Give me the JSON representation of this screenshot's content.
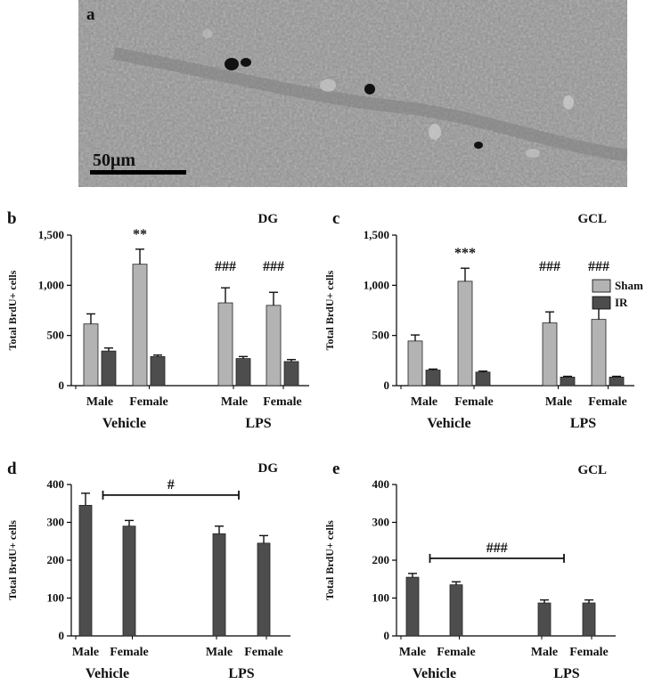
{
  "micrograph": {
    "panel": "a",
    "scale_bar_label": "50μm",
    "icon": "brain-tissue-micrograph"
  },
  "legend": {
    "entries": [
      {
        "label": "Sham",
        "color": "#b3b3b3"
      },
      {
        "label": "IR",
        "color": "#4d4d4d"
      }
    ]
  },
  "colors": {
    "sham": "#b3b3b3",
    "ir": "#4d4d4d",
    "axis": "#000000"
  },
  "chart_data": [
    {
      "panel": "b",
      "type": "bar",
      "title": "DG",
      "ylabel": "Total BrdU+ cells",
      "ylim": [
        0,
        1500
      ],
      "yticks": [
        "0",
        "500",
        "1,000",
        "1,500"
      ],
      "ytick_values": [
        0,
        500,
        1000,
        1500
      ],
      "conditions": [
        "Vehicle",
        "LPS"
      ],
      "categories": [
        "Male",
        "Female",
        "Male",
        "Female"
      ],
      "series": [
        {
          "name": "Sham",
          "values": [
            615,
            1210,
            825,
            800
          ],
          "errors": [
            100,
            150,
            150,
            130
          ]
        },
        {
          "name": "IR",
          "values": [
            345,
            290,
            270,
            240
          ],
          "errors": [
            30,
            15,
            20,
            20
          ]
        }
      ],
      "annotations": [
        {
          "text": "**",
          "category_index": 1
        },
        {
          "text": "###",
          "category_index": 2
        },
        {
          "text": "###",
          "category_index": 3
        }
      ]
    },
    {
      "panel": "c",
      "type": "bar",
      "title": "GCL",
      "ylabel": "Total BrdU+ cells",
      "ylim": [
        0,
        1500
      ],
      "yticks": [
        "0",
        "500",
        "1,000",
        "1,500"
      ],
      "ytick_values": [
        0,
        500,
        1000,
        1500
      ],
      "conditions": [
        "Vehicle",
        "LPS"
      ],
      "categories": [
        "Male",
        "Female",
        "Male",
        "Female"
      ],
      "series": [
        {
          "name": "Sham",
          "values": [
            445,
            1040,
            625,
            660
          ],
          "errors": [
            60,
            130,
            110,
            115
          ]
        },
        {
          "name": "IR",
          "values": [
            155,
            135,
            85,
            85
          ],
          "errors": [
            10,
            10,
            8,
            8
          ]
        }
      ],
      "annotations": [
        {
          "text": "***",
          "category_index": 1
        },
        {
          "text": "###",
          "category_index": 2
        },
        {
          "text": "###",
          "category_index": 3
        }
      ]
    },
    {
      "panel": "d",
      "type": "bar",
      "title": "DG",
      "ylabel": "Total BrdU+ cells",
      "ylim": [
        0,
        400
      ],
      "yticks": [
        "0",
        "100",
        "200",
        "300",
        "400"
      ],
      "ytick_values": [
        0,
        100,
        200,
        300,
        400
      ],
      "conditions": [
        "Vehicle",
        "LPS"
      ],
      "categories": [
        "Male",
        "Female",
        "Male",
        "Female"
      ],
      "series": [
        {
          "name": "IR",
          "values": [
            345,
            290,
            270,
            245
          ],
          "errors": [
            32,
            15,
            20,
            20
          ]
        }
      ],
      "bracket": {
        "text": "#",
        "from_index": 0,
        "to_index": 2,
        "y": 372
      }
    },
    {
      "panel": "e",
      "type": "bar",
      "title": "GCL",
      "ylabel": "Total BrdU+ cells",
      "ylim": [
        0,
        400
      ],
      "yticks": [
        "0",
        "100",
        "200",
        "300",
        "400"
      ],
      "ytick_values": [
        0,
        100,
        200,
        300,
        400
      ],
      "conditions": [
        "Vehicle",
        "LPS"
      ],
      "categories": [
        "Male",
        "Female",
        "Male",
        "Female"
      ],
      "series": [
        {
          "name": "IR",
          "values": [
            155,
            135,
            87,
            87
          ],
          "errors": [
            10,
            8,
            8,
            8
          ]
        }
      ],
      "bracket": {
        "text": "###",
        "from_index": 0,
        "to_index": 2,
        "y": 205
      }
    }
  ]
}
